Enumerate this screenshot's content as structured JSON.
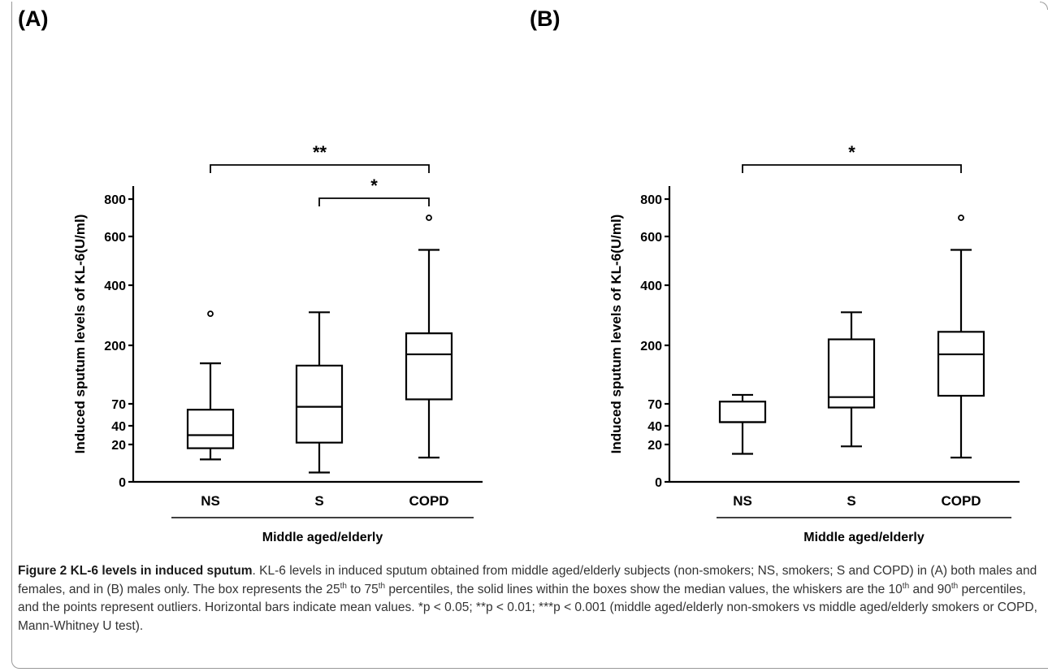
{
  "panels": [
    {
      "label": "(A)"
    },
    {
      "label": "(B)"
    }
  ],
  "chart_data": [
    {
      "type": "box",
      "panel": "(A)",
      "ylabel": "Induced sputum levels of KL-6(U/ml)",
      "xlabel": "Middle aged/elderly",
      "y_ticks": [
        "0",
        "20",
        "40",
        "70",
        "200",
        "400",
        "600",
        "800"
      ],
      "y_scale": "piecewise (compressed below 70)",
      "categories": [
        "NS",
        "S",
        "COPD"
      ],
      "boxes": [
        {
          "category": "NS",
          "whisker_low": 12,
          "q1": 18,
          "median": 30,
          "q3": 62,
          "whisker_high": 160,
          "outliers": [
            305
          ]
        },
        {
          "category": "S",
          "whisker_low": 5,
          "q1": 22,
          "median": 66,
          "q3": 155,
          "whisker_high": 310,
          "outliers": []
        },
        {
          "category": "COPD",
          "whisker_low": 13,
          "q1": 80,
          "median": 180,
          "q3": 240,
          "whisker_high": 545,
          "outliers": [
            700
          ]
        }
      ],
      "significance": [
        {
          "from": "NS",
          "to": "COPD",
          "label": "**"
        },
        {
          "from": "S",
          "to": "COPD",
          "label": "*"
        }
      ]
    },
    {
      "type": "box",
      "panel": "(B)",
      "ylabel": "Induced sputum levels of KL-6(U/ml)",
      "xlabel": "Middle aged/elderly",
      "y_ticks": [
        "0",
        "20",
        "40",
        "70",
        "200",
        "400",
        "600",
        "800"
      ],
      "y_scale": "piecewise (compressed below 70)",
      "categories": [
        "NS",
        "S",
        "COPD"
      ],
      "boxes": [
        {
          "category": "NS",
          "whisker_low": 15,
          "q1": 45,
          "median": 45,
          "q3": 75,
          "whisker_high": 90,
          "outliers": []
        },
        {
          "category": "S",
          "whisker_low": 19,
          "q1": 65,
          "median": 85,
          "q3": 220,
          "whisker_high": 310,
          "outliers": []
        },
        {
          "category": "COPD",
          "whisker_low": 13,
          "q1": 88,
          "median": 180,
          "q3": 245,
          "whisker_high": 545,
          "outliers": [
            700
          ]
        }
      ],
      "significance": [
        {
          "from": "NS",
          "to": "COPD",
          "label": "*"
        }
      ]
    }
  ],
  "caption": {
    "title": "Figure 2 KL-6 levels in induced sputum",
    "p1": ". KL-6 levels in induced sputum obtained from middle aged/elderly subjects (non-smokers; NS, smokers; S and COPD) in (A) both males and females, and in (B) males only. The box represents the 25",
    "sup1": "th",
    "p2": " to 75",
    "sup2": "th",
    "p3": " percentiles, the solid lines within the boxes show the median values, the whiskers are the 10",
    "sup3": "th",
    "p4": " and 90",
    "sup4": "th",
    "p5": " percentiles, and the points represent outliers. Horizontal bars indicate mean values. *p < 0.05; **p < 0.01; ***p < 0.001 (middle aged/elderly non-smokers vs middle aged/elderly smokers or COPD, Mann-Whitney U test)."
  }
}
